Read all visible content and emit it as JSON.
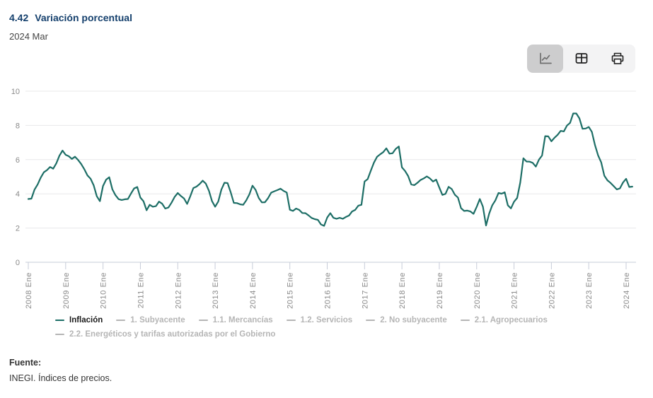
{
  "header": {
    "figure_number": "4.42",
    "title": "Variación porcentual",
    "period": "2024 Mar"
  },
  "toolbar": {
    "buttons": [
      {
        "id": "chart-view",
        "icon": "line-chart-icon",
        "selected": true
      },
      {
        "id": "table-view",
        "icon": "table-icon",
        "selected": false
      },
      {
        "id": "print",
        "icon": "printer-icon",
        "selected": false
      }
    ]
  },
  "chart_data": {
    "type": "line",
    "title": "4.42 Variación porcentual",
    "period": "2024 Mar",
    "xlabel": "",
    "ylabel": "",
    "ylim": [
      0,
      10
    ],
    "yticks": [
      0,
      2,
      4,
      6,
      8,
      10
    ],
    "grid": "horizontal",
    "legend_position": "bottom",
    "x_frequency": "monthly",
    "x_start": "2008 Ene",
    "x_end": "2024 Mar",
    "x_tick_labels": [
      "2008 Ene",
      "2009 Ene",
      "2010 Ene",
      "2011 Ene",
      "2012 Ene",
      "2013 Ene",
      "2014 Ene",
      "2015 Ene",
      "2016 Ene",
      "2017 Ene",
      "2018 Ene",
      "2019 Ene",
      "2020 Ene",
      "2021 Ene",
      "2022 Ene",
      "2023 Ene",
      "2024 Ene"
    ],
    "series": [
      {
        "name": "Inflación",
        "color": "#1d6e66",
        "visible": true,
        "values": [
          3.7,
          3.72,
          4.25,
          4.55,
          4.95,
          5.26,
          5.39,
          5.57,
          5.47,
          5.78,
          6.23,
          6.53,
          6.28,
          6.2,
          6.04,
          6.17,
          5.98,
          5.74,
          5.44,
          5.08,
          4.89,
          4.5,
          3.86,
          3.57,
          4.46,
          4.83,
          4.97,
          4.27,
          3.92,
          3.69,
          3.64,
          3.68,
          3.7,
          4.02,
          4.32,
          4.4,
          3.78,
          3.57,
          3.04,
          3.36,
          3.25,
          3.28,
          3.55,
          3.42,
          3.14,
          3.2,
          3.48,
          3.82,
          4.05,
          3.87,
          3.73,
          3.41,
          3.85,
          4.34,
          4.42,
          4.57,
          4.77,
          4.6,
          4.18,
          3.57,
          3.25,
          3.55,
          4.25,
          4.65,
          4.63,
          4.09,
          3.47,
          3.46,
          3.39,
          3.36,
          3.62,
          3.97,
          4.48,
          4.23,
          3.76,
          3.5,
          3.51,
          3.75,
          4.07,
          4.15,
          4.22,
          4.3,
          4.17,
          4.08,
          3.07,
          3.0,
          3.14,
          3.06,
          2.88,
          2.87,
          2.74,
          2.59,
          2.52,
          2.48,
          2.21,
          2.13,
          2.61,
          2.87,
          2.6,
          2.54,
          2.6,
          2.54,
          2.65,
          2.73,
          2.97,
          3.06,
          3.31,
          3.36,
          4.72,
          4.86,
          5.35,
          5.82,
          6.16,
          6.31,
          6.44,
          6.66,
          6.35,
          6.37,
          6.63,
          6.77,
          5.55,
          5.34,
          5.04,
          4.55,
          4.51,
          4.65,
          4.81,
          4.9,
          5.02,
          4.9,
          4.72,
          4.83,
          4.37,
          3.94,
          4.0,
          4.41,
          4.28,
          3.95,
          3.78,
          3.16,
          3.0,
          3.02,
          2.97,
          2.83,
          3.24,
          3.7,
          3.25,
          2.15,
          2.84,
          3.33,
          3.62,
          4.05,
          4.01,
          4.09,
          3.33,
          3.15,
          3.54,
          3.76,
          4.67,
          6.08,
          5.89,
          5.88,
          5.81,
          5.59,
          6.0,
          6.24,
          7.37,
          7.36,
          7.07,
          7.28,
          7.45,
          7.68,
          7.65,
          7.99,
          8.15,
          8.7,
          8.7,
          8.41,
          7.8,
          7.82,
          7.91,
          7.62,
          6.85,
          6.25,
          5.84,
          5.06,
          4.79,
          4.64,
          4.45,
          4.26,
          4.32,
          4.66,
          4.88,
          4.4,
          4.42
        ]
      }
    ],
    "hidden_series": [
      "1. Subyacente",
      "1.1. Mercancías",
      "1.2. Servicios",
      "2. No subyacente",
      "2.1. Agropecuarios",
      "2.2. Energéticos y tarifas autorizadas por el Gobierno"
    ]
  },
  "legend": {
    "items": [
      {
        "label": "Inflación",
        "active": true
      },
      {
        "label": "1. Subyacente",
        "active": false
      },
      {
        "label": "1.1. Mercancías",
        "active": false
      },
      {
        "label": "1.2. Servicios",
        "active": false
      },
      {
        "label": "2. No subyacente",
        "active": false
      },
      {
        "label": "2.1. Agropecuarios",
        "active": false
      },
      {
        "label": "2.2. Energéticos y tarifas autorizadas por el Gobierno",
        "active": false
      }
    ]
  },
  "footer": {
    "source_label": "Fuente:",
    "source_text": "INEGI. Índices de precios."
  },
  "colors": {
    "line": "#1d6e66",
    "inactive_legend": "#b5b5b5",
    "grid": "#e8e8ea",
    "axis": "#c7ccd8",
    "tick_text": "#8a8a8a",
    "title": "#15406d"
  }
}
